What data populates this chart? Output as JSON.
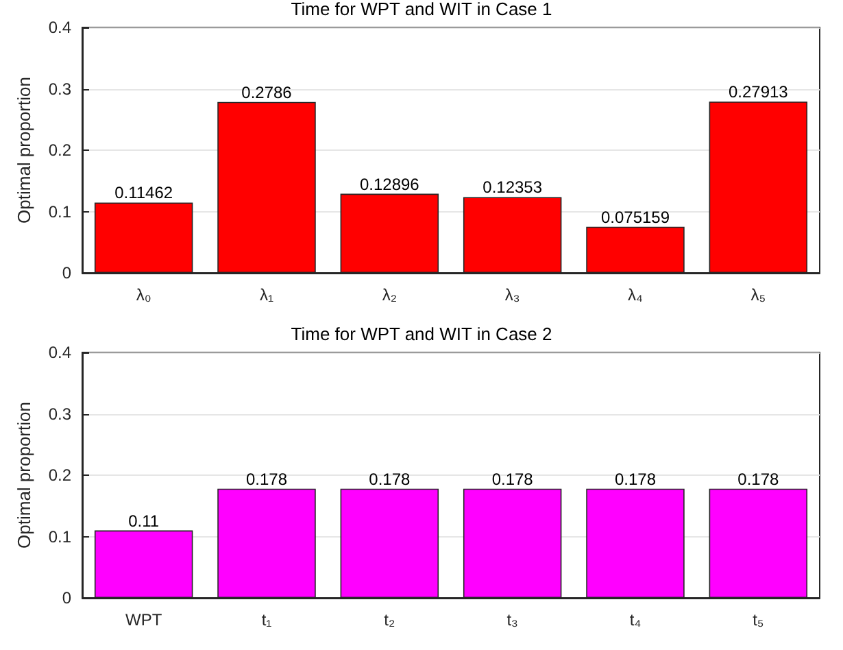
{
  "chart_data": [
    {
      "type": "bar",
      "title": "Time for WPT and WIT in Case 1",
      "ylabel": "Optimal proportion",
      "categories": [
        "λ₀",
        "λ₁",
        "λ₂",
        "λ₃",
        "λ₄",
        "λ₅"
      ],
      "values": [
        0.11462,
        0.2786,
        0.12896,
        0.12353,
        0.075159,
        0.27913
      ],
      "color": "#ff0000",
      "ylim": [
        0,
        0.4
      ],
      "yticks": [
        0,
        0.1,
        0.2,
        0.3,
        0.4
      ],
      "grid": "y",
      "data_labels": true
    },
    {
      "type": "bar",
      "title": "Time for WPT and WIT in Case 2",
      "ylabel": "Optimal proportion",
      "categories": [
        "WPT",
        "t₁",
        "t₂",
        "t₃",
        "t₄",
        "t₅"
      ],
      "values": [
        0.11,
        0.178,
        0.178,
        0.178,
        0.178,
        0.178
      ],
      "color": "#ff00ff",
      "ylim": [
        0,
        0.4
      ],
      "yticks": [
        0,
        0.1,
        0.2,
        0.3,
        0.4
      ],
      "grid": "y",
      "data_labels": true
    }
  ]
}
